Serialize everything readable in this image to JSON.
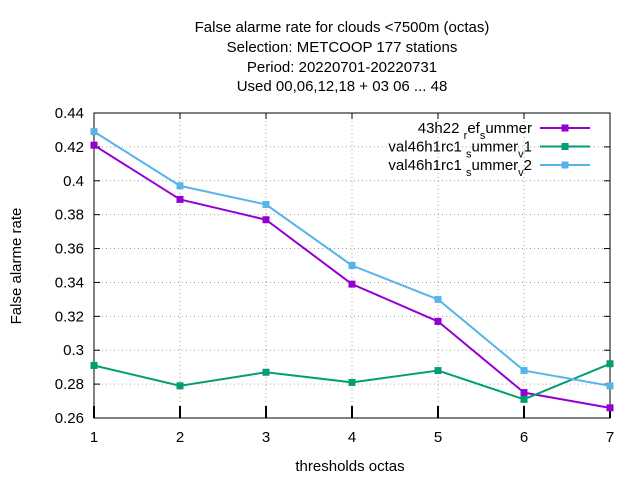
{
  "chart_data": {
    "type": "line",
    "title": [
      "False alarme rate  for clouds <7500m (octas)",
      "Selection: METCOOP    177 stations",
      "Period: 20220701-20220731",
      "Used  00,06,12,18  + 03 06 ... 48"
    ],
    "xlabel": "thresholds octas",
    "ylabel": "False alarme rate",
    "x": [
      1,
      2,
      3,
      4,
      5,
      6,
      7
    ],
    "xlim": [
      1,
      7
    ],
    "ylim": [
      0.26,
      0.44
    ],
    "x_ticks": [
      "1",
      "2",
      "3",
      "4",
      "5",
      "6",
      "7"
    ],
    "y_ticks": [
      "0.26",
      "0.28",
      "0.3",
      "0.32",
      "0.34",
      "0.36",
      "0.38",
      "0.4",
      "0.42",
      "0.44"
    ],
    "grid": true,
    "legend_position": "top-right",
    "series": [
      {
        "name": "43h22_ref_summer",
        "legend_parts": [
          {
            "t": "43h22 ",
            "sub": false
          },
          {
            "t": "r",
            "sub": true
          },
          {
            "t": "ef",
            "sub": false
          },
          {
            "t": "s",
            "sub": true
          },
          {
            "t": "ummer",
            "sub": false
          }
        ],
        "color": "#9400d3",
        "values": [
          0.421,
          0.389,
          0.377,
          0.339,
          0.317,
          0.275,
          0.266
        ]
      },
      {
        "name": "val46h1rc1_summer_v1",
        "legend_parts": [
          {
            "t": "val46h1rc1 ",
            "sub": false
          },
          {
            "t": "s",
            "sub": true
          },
          {
            "t": "ummer",
            "sub": false
          },
          {
            "t": "v",
            "sub": true
          },
          {
            "t": "1",
            "sub": false
          }
        ],
        "color": "#009e73",
        "values": [
          0.291,
          0.279,
          0.287,
          0.281,
          0.288,
          0.271,
          0.292
        ]
      },
      {
        "name": "val46h1rc1_summer_v2",
        "legend_parts": [
          {
            "t": "val46h1rc1 ",
            "sub": false
          },
          {
            "t": "s",
            "sub": true
          },
          {
            "t": "ummer",
            "sub": false
          },
          {
            "t": "v",
            "sub": true
          },
          {
            "t": "2",
            "sub": false
          }
        ],
        "color": "#56b4e9",
        "values": [
          0.429,
          0.397,
          0.386,
          0.35,
          0.33,
          0.288,
          0.279
        ]
      }
    ]
  }
}
